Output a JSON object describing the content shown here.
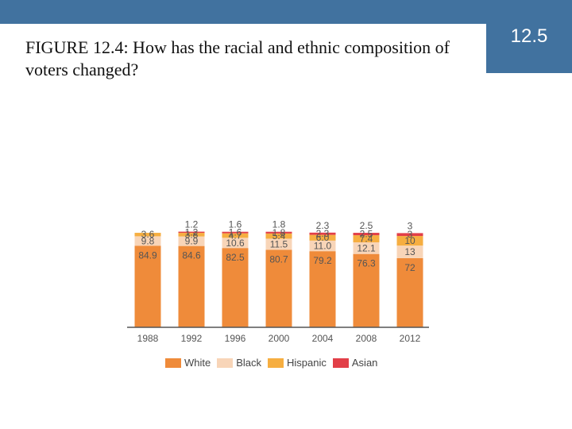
{
  "slide": {
    "title": "FIGURE 12.4: How has the racial and ethnic composition of voters changed?",
    "section_number": "12.5"
  },
  "colors": {
    "header_bar": "#41729f",
    "White": "#ef8b3a",
    "Black": "#f8d5b8",
    "Hispanic": "#f6ae40",
    "Asian": "#e23f48"
  },
  "chart_data": {
    "type": "bar",
    "stacked": true,
    "categories": [
      "1988",
      "1992",
      "1996",
      "2000",
      "2004",
      "2008",
      "2012"
    ],
    "series": [
      {
        "name": "White",
        "values": [
          84.9,
          84.6,
          82.5,
          80.7,
          79.2,
          76.3,
          72
        ]
      },
      {
        "name": "Black",
        "values": [
          9.8,
          9.9,
          10.6,
          11.5,
          11.0,
          12.1,
          13
        ]
      },
      {
        "name": "Hispanic",
        "values": [
          3.6,
          3.8,
          4.7,
          5.4,
          6.0,
          7.4,
          10
        ]
      },
      {
        "name": "Asian",
        "values": [
          null,
          1.2,
          1.6,
          1.8,
          2.3,
          2.5,
          3
        ]
      }
    ],
    "labels": {
      "White": [
        "84.9",
        "84.6",
        "82.5",
        "80.7",
        "79.2",
        "76.3",
        "72"
      ],
      "Black": [
        "9.8",
        "9.9",
        "10.6",
        "11.5",
        "11.0",
        "12.1",
        "13"
      ],
      "Hispanic": [
        "3.6",
        "3.8",
        "4.7",
        "5.4",
        "6.0",
        "7.4",
        "10"
      ],
      "Asian": [
        "",
        "1.2",
        "1.6",
        "1.8",
        "2.3",
        "2.5",
        "3"
      ]
    },
    "ylim": [
      0,
      100
    ],
    "grid": false,
    "legend_position": "bottom",
    "legend": [
      "White",
      "Black",
      "Hispanic",
      "Asian"
    ]
  }
}
